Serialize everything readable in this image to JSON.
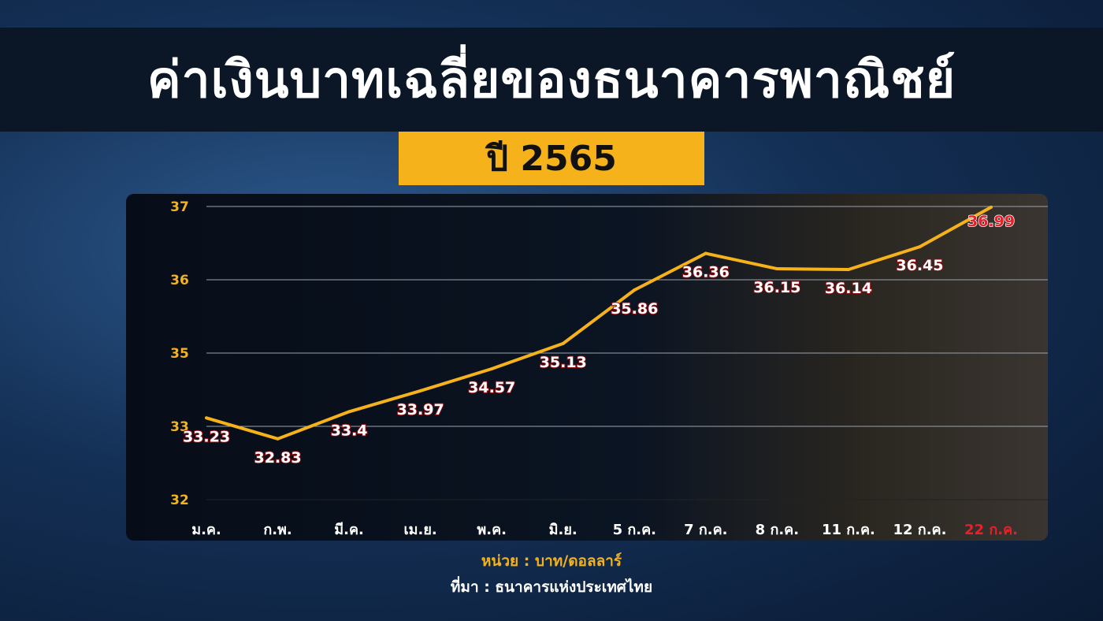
{
  "title": "ค่าเงินบาทเฉลี่ยของธนาคารพาณิชย์",
  "subtitle": "ปี 2565",
  "unit_note": "หน่วย : บาท/ดอลลาร์",
  "source_note": "ที่มา : ธนาคารแห่งประเทศไทย",
  "chart_data": {
    "type": "line",
    "categories": [
      "ม.ค.",
      "ก.พ.",
      "มี.ค.",
      "เม.ย.",
      "พ.ค.",
      "มิ.ย.",
      "5 ก.ค.",
      "7 ก.ค.",
      "8 ก.ค.",
      "11 ก.ค.",
      "12 ก.ค.",
      "22 ก.ค."
    ],
    "values": [
      33.23,
      32.83,
      33.4,
      33.97,
      34.57,
      35.13,
      35.86,
      36.36,
      36.15,
      36.14,
      36.45,
      36.99
    ],
    "data_labels": [
      "33.23",
      "32.83",
      "33.4",
      "33.97",
      "34.57",
      "35.13",
      "35.86",
      "36.36",
      "36.15",
      "36.14",
      "36.45",
      "36.99"
    ],
    "y_ticks": [
      "37",
      "36",
      "35",
      "33",
      "32"
    ],
    "ylim": [
      32,
      37
    ],
    "grid": true,
    "line_color": "#f5b21a",
    "highlight_color": "#e8202a",
    "highlight_index": 11
  }
}
